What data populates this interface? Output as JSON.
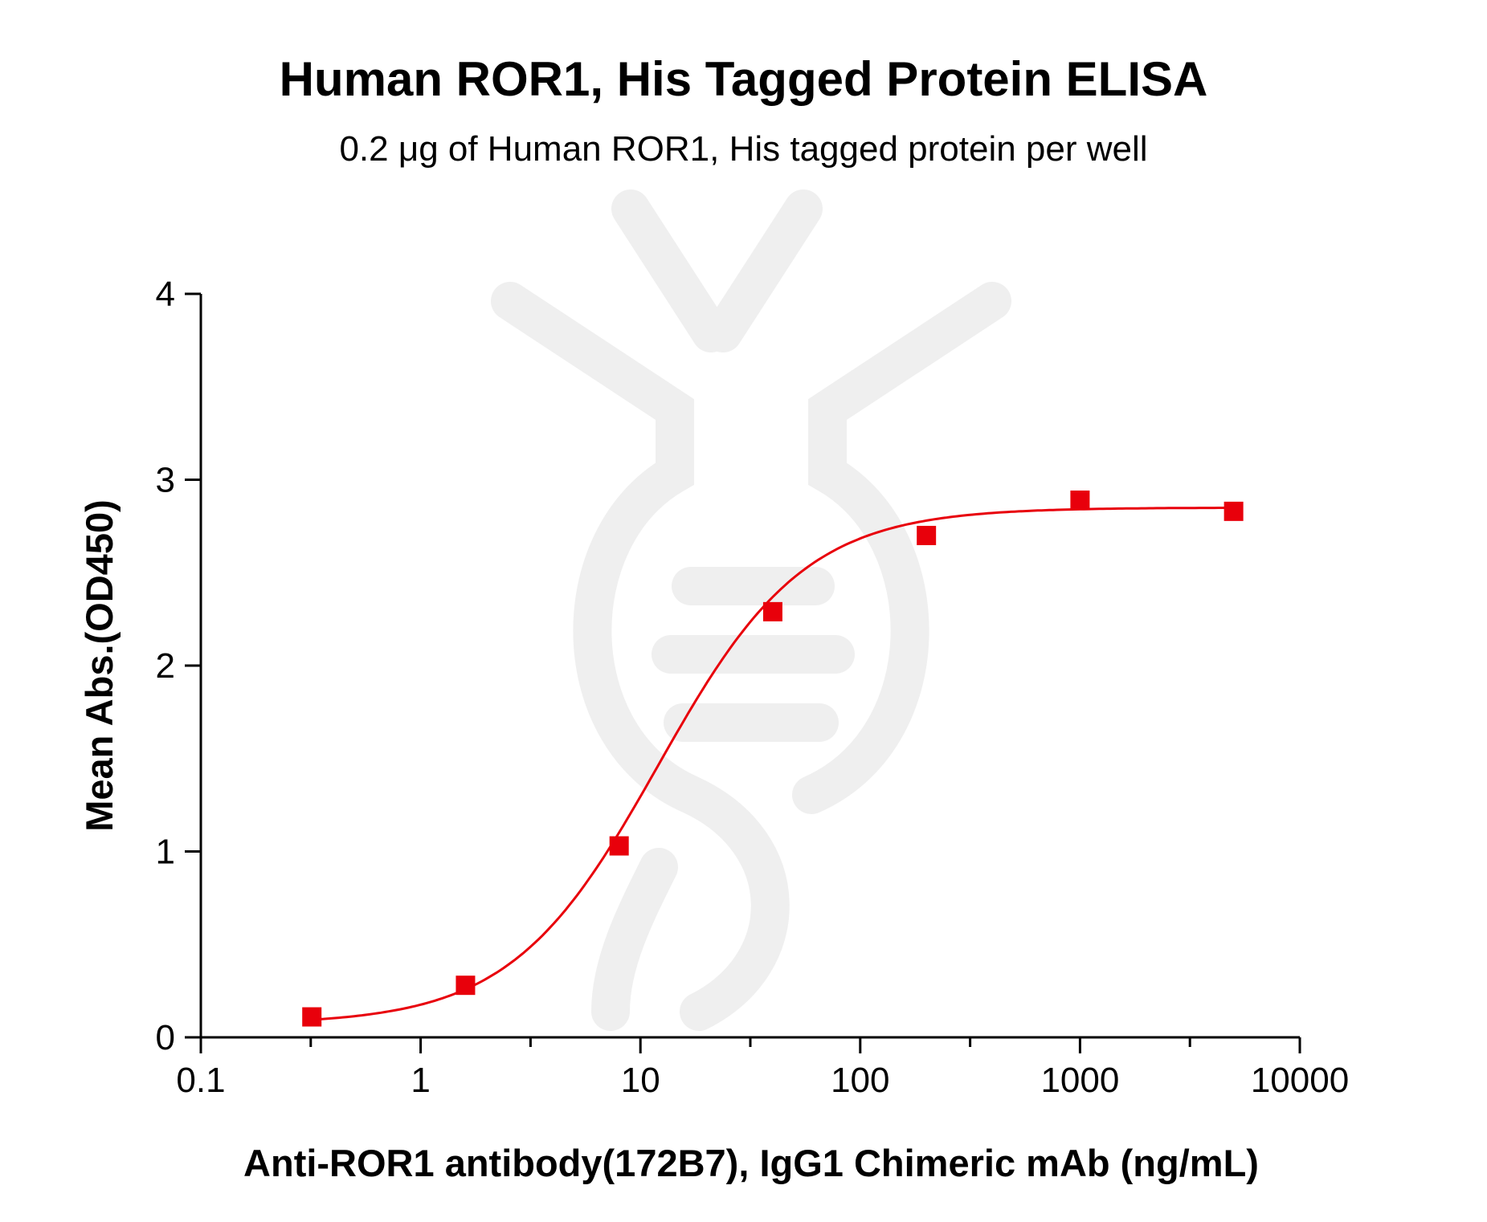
{
  "chart_data": {
    "type": "scatter",
    "title": "Human ROR1, His Tagged Protein ELISA",
    "subtitle": "0.2 μg of Human ROR1, His tagged protein per well",
    "xlabel": "Anti-ROR1 antibody(172B7), IgG1 Chimeric mAb (ng/mL)",
    "ylabel": "Mean Abs.(OD450)",
    "xscale": "log",
    "xlim": [
      0.1,
      10000
    ],
    "ylim": [
      0,
      4
    ],
    "xticks": [
      "0.1",
      "1",
      "10",
      "100",
      "1000",
      "10000"
    ],
    "yticks": [
      "0",
      "1",
      "2",
      "3",
      "4"
    ],
    "series": [
      {
        "x": [
          0.32,
          1.6,
          8,
          40,
          200,
          1000,
          5000
        ],
        "y": [
          0.11,
          0.28,
          1.03,
          2.29,
          2.7,
          2.89,
          2.83
        ],
        "marker": "square",
        "fit": "sigmoidal",
        "color": "#e8000b"
      }
    ],
    "grid": false,
    "legend": "none",
    "watermark": "faded DNA-helix logo"
  }
}
